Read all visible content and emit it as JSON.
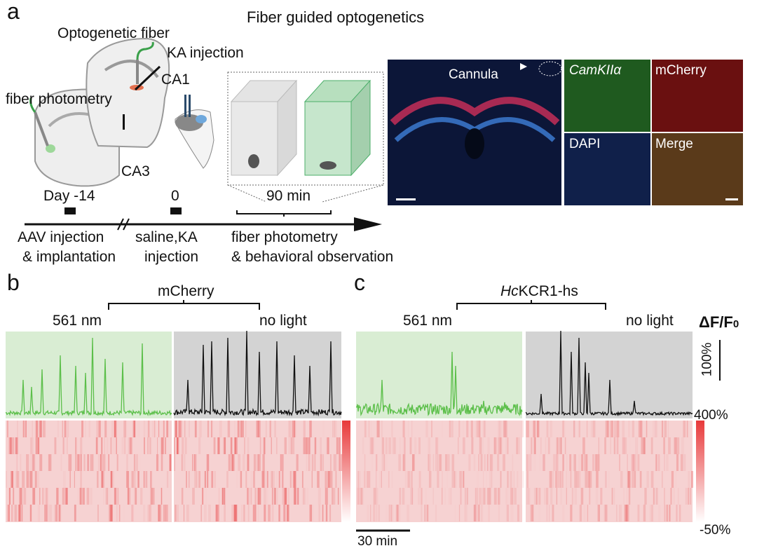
{
  "panels": {
    "a": "a",
    "b": "b",
    "c": "c"
  },
  "title": "Fiber guided optogenetics",
  "schematic": {
    "optogenetic_fiber": "Optogenetic fiber",
    "ka_injection": "KA injection",
    "ca1": "CA1",
    "fiber_photometry": "fiber photometry",
    "ca3": "CA3",
    "duration": "90 min",
    "timeline": {
      "day_minus14": "Day -14",
      "day0": "0",
      "step1_line1": "AAV injection",
      "step1_line2": "& implantation",
      "step2_line1": "saline,KA",
      "step2_line2": "injection",
      "step3_line1": "fiber photometry",
      "step3_line2": "& behavioral observation"
    }
  },
  "histology": {
    "cannula": "Cannula",
    "camkii": "CamKIIα",
    "mcherry": "mCherry",
    "dapi": "DAPI",
    "merge": "Merge"
  },
  "panel_b": {
    "group": "mCherry",
    "cond1": "561 nm",
    "cond2": "no light"
  },
  "panel_c": {
    "group_italic": "Hc",
    "group_rest": "KCR1-hs",
    "cond1": "561 nm",
    "cond2": "no light"
  },
  "scale": {
    "dff": "ΔF/F",
    "dff_sub": "0",
    "vbar": "100%",
    "cmax": "400%",
    "cmin": "-50%",
    "time": "30 min"
  },
  "colors": {
    "green": "#5cbf4a",
    "green_bg": "#d9edd3",
    "gray_bg": "#d3d3d3",
    "heat_low": "#f6d2d2",
    "heat_high": "#e8393a"
  }
}
